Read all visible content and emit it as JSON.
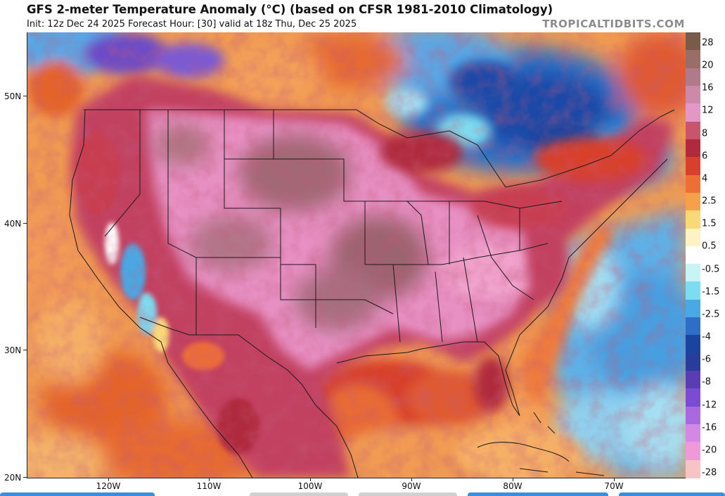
{
  "header": {
    "title": "GFS 2-meter Temperature Anomaly (°C) (based on CFSR 1981-2010 Climatology)",
    "subtitle": "Init: 12z Dec 24 2025   Forecast Hour: [30]   valid at 18z Thu, Dec 25 2025",
    "brand": "TROPICALTIDBITS.COM"
  },
  "axes": {
    "lat_labels": [
      "50N",
      "40N",
      "30N",
      "20N"
    ],
    "lon_labels": [
      "120W",
      "110W",
      "100W",
      "90W",
      "80W",
      "70W"
    ]
  },
  "colorbar": {
    "labels": [
      "28",
      "20",
      "16",
      "12",
      "8",
      "6",
      "4",
      "2.5",
      "1.5",
      "0.5",
      "-0.5",
      "-1.5",
      "-2.5",
      "-4",
      "-6",
      "-8",
      "-12",
      "-16",
      "-20",
      "-28"
    ],
    "colors": [
      "#7a5a48",
      "#9a6d66",
      "#b07a8a",
      "#cc8aa8",
      "#e496c4",
      "#c8546e",
      "#b02a3c",
      "#d8402c",
      "#ee6e36",
      "#f6a04a",
      "#fad878",
      "#fff3c4",
      "#ffffff",
      "#c8f4f6",
      "#7edcf0",
      "#4aa8e4",
      "#2e6ec8",
      "#1a44a0",
      "#283c9c",
      "#5a3cb4",
      "#7a4cd4",
      "#a868e0",
      "#d488e6",
      "#ee9ad8",
      "#f6c4c4"
    ]
  },
  "map": {
    "region": "Contiguous United States with southern Canada, Mexico, Gulf of Mexico, Caribbean, and adjacent Pacific and Atlantic Oceans",
    "colors": {
      "ocean_pacific": "#f09a52",
      "ocean_pacific_warm": "#e4642c",
      "plains_core": "#a26874",
      "plains_pink": "#e890c4",
      "west_red": "#c24060",
      "gulf_warm": "#d8402c",
      "canada_cold": "#2c70c8",
      "canada_deep": "#1a4aa8",
      "atlantic_cool": "#5fb0e6",
      "atlantic_light": "#a6def2",
      "nw_purple": "#6a4cc8",
      "border_line": "#1a1a1a"
    }
  }
}
